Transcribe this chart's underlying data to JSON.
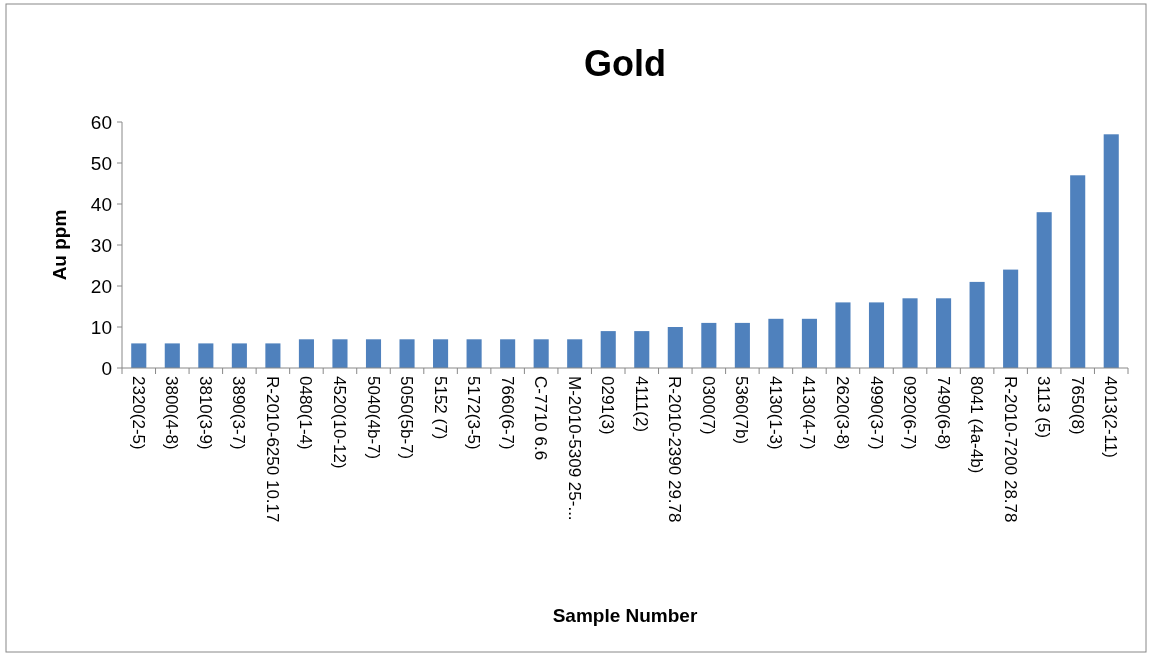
{
  "chart_data": {
    "type": "bar",
    "title": "Gold",
    "xlabel": "Sample Number",
    "ylabel": "Au ppm",
    "categories": [
      "2320(2-5)",
      "3800(4-8)",
      "3810(3-9)",
      "3890(3-7)",
      "R-2010-6250 10.17",
      "0480(1-4)",
      "4520(10-12)",
      "5040(4b-7)",
      "5050(5b-7)",
      "5152 (7)",
      "5172(3-5)",
      "7660(6-7)",
      "C-7710 6.6",
      "M-2010-5309 25-...",
      "0291(3)",
      "4111(2)",
      "R-2010-2390 29.78",
      "0300(7)",
      "5360(7b)",
      "4130(1-3)",
      "4130(4-7)",
      "2620(3-8)",
      "4990(3-7)",
      "0920(6-7)",
      "7490(6-8)",
      "8041 (4a-4b)",
      "R-2010-7200 28.78",
      "3113 (5)",
      "7650(8)",
      "4013(2-11)"
    ],
    "values": [
      6,
      6,
      6,
      6,
      6,
      7,
      7,
      7,
      7,
      7,
      7,
      7,
      7,
      7,
      9,
      9,
      10,
      11,
      11,
      12,
      12,
      16,
      16,
      17,
      17,
      21,
      24,
      38,
      47,
      57
    ],
    "color": "#4f81bd",
    "ylim": [
      0,
      60
    ],
    "yticks": [
      0,
      10,
      20,
      30,
      40,
      50,
      60
    ],
    "grid": false
  }
}
